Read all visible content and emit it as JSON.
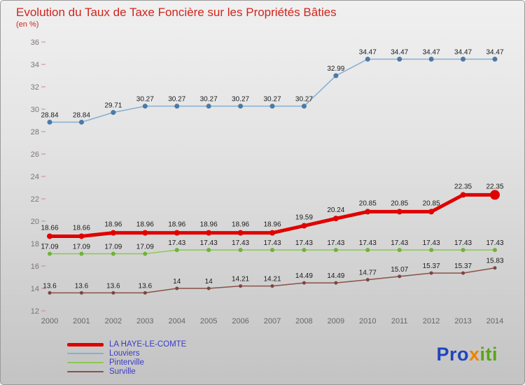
{
  "title": "Evolution du Taux de Taxe Foncière sur les Propriétés Bâties",
  "subtitle": "(en %)",
  "accent_color": "#d0251c",
  "chart_data": {
    "type": "line",
    "x": [
      2000,
      2001,
      2002,
      2003,
      2004,
      2005,
      2006,
      2007,
      2008,
      2009,
      2010,
      2011,
      2012,
      2013,
      2014
    ],
    "ylim": [
      12,
      36
    ],
    "ytick_step": 2,
    "grid": false,
    "legend_position": "bottom-left",
    "xlabel": "",
    "ylabel": "en %",
    "series": [
      {
        "name": "LA HAYE-LE-COMTE",
        "color": "#e00000",
        "line_width": 5,
        "marker_size": 4,
        "end_marker_size": 7,
        "label_offset": 9,
        "values": [
          18.66,
          18.66,
          18.96,
          18.96,
          18.96,
          18.96,
          18.96,
          18.96,
          19.59,
          20.24,
          20.85,
          20.85,
          20.85,
          22.35,
          22.35
        ]
      },
      {
        "name": "Louviers",
        "color": "#85aed2",
        "marker_color": "#4a7aa8",
        "line_width": 1.5,
        "marker_size": 3.5,
        "label_offset": 7,
        "values": [
          28.84,
          28.84,
          29.71,
          30.27,
          30.27,
          30.27,
          30.27,
          30.27,
          30.27,
          32.99,
          34.47,
          34.47,
          34.47,
          34.47,
          34.47
        ]
      },
      {
        "name": "Pinterville",
        "color": "#8bc853",
        "marker_color": "#6db33a",
        "line_width": 1.5,
        "marker_size": 3,
        "label_offset": 7,
        "values": [
          17.09,
          17.09,
          17.09,
          17.09,
          17.43,
          17.43,
          17.43,
          17.43,
          17.43,
          17.43,
          17.43,
          17.43,
          17.43,
          17.43,
          17.43
        ]
      },
      {
        "name": "Surville",
        "color": "#8a5149",
        "marker_color": "#7a4640",
        "line_width": 1.5,
        "marker_size": 2.5,
        "label_offset": 7,
        "values": [
          13.6,
          13.6,
          13.6,
          13.6,
          14,
          14,
          14.21,
          14.21,
          14.49,
          14.49,
          14.77,
          15.07,
          15.37,
          15.37,
          15.83
        ]
      }
    ]
  },
  "legend": {
    "items": [
      "LA HAYE-LE-COMTE",
      "Louviers",
      "Pinterville",
      "Surville"
    ]
  },
  "logo": {
    "parts": [
      {
        "text": "Pro",
        "color": "#1f46bb"
      },
      {
        "text": "x",
        "color": "#f08200"
      },
      {
        "text": "iti",
        "color": "#59a618"
      }
    ]
  }
}
